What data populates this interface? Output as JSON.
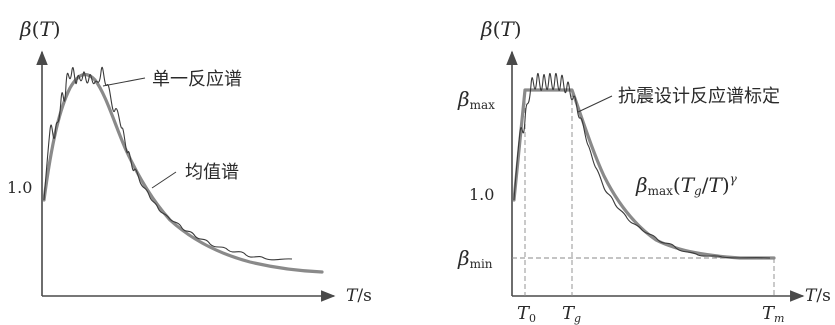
{
  "left_panel": {
    "y_axis": {
      "symbol": "β",
      "open_paren": "(",
      "var": "T",
      "close_paren": ")"
    },
    "y_tick": "1.0",
    "x_axis": {
      "var": "T",
      "unit": "/s"
    },
    "annotations": {
      "single_spectrum": "单一反应谱",
      "mean_spectrum": "均值谱"
    }
  },
  "right_panel": {
    "y_axis": {
      "symbol": "β",
      "open_paren": "(",
      "var": "T",
      "close_paren": ")"
    },
    "y_ticks": {
      "beta_max": {
        "symbol": "β",
        "subscript": "max"
      },
      "one": "1.0",
      "beta_min": {
        "symbol": "β",
        "subscript": "min"
      }
    },
    "x_axis": {
      "var": "T",
      "unit": "/s"
    },
    "x_ticks": {
      "t0": {
        "var": "T",
        "subscript": "0"
      },
      "tg": {
        "var": "T",
        "subscript": "g"
      },
      "tm": {
        "var": "T",
        "subscript": "m"
      }
    },
    "annotations": {
      "design_label": "抗震设计反应谱标定",
      "formula": {
        "beta": "β",
        "sub": "max",
        "open": "(",
        "tg": "T",
        "tg_sub": "g",
        "slash": "/",
        "t": "T",
        "close": ")",
        "exp": "γ"
      }
    }
  }
}
